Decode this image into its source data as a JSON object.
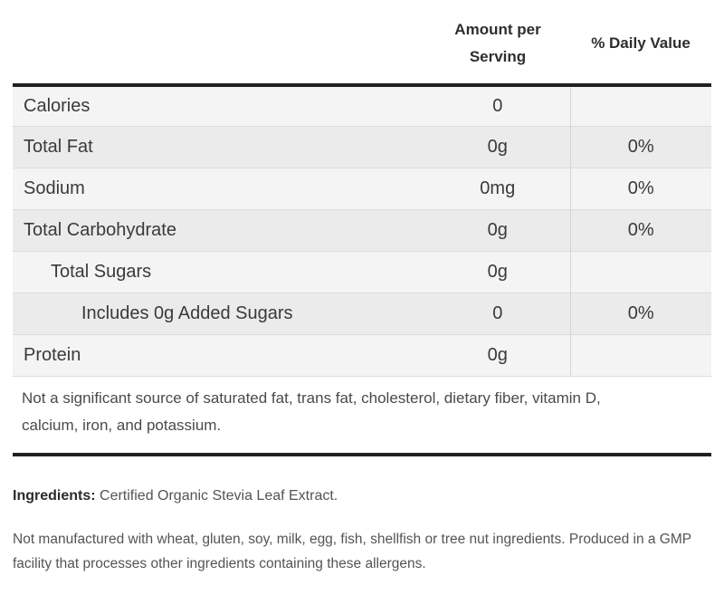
{
  "colors": {
    "rule_dark": "#212121",
    "stripe_light": "#f4f4f4",
    "stripe_dark": "#ebebeb",
    "row_separator": "#dcdcdc",
    "column_divider": "#d4d4d4",
    "label_text": "#3a3a3a",
    "note_text": "#545454"
  },
  "table": {
    "header": {
      "amount_col": "Amount per Serving",
      "daily_value_col": "% Daily Value"
    },
    "rows": [
      {
        "label": "Calories",
        "amount": "0",
        "daily_value": "",
        "indent": 0
      },
      {
        "label": "Total Fat",
        "amount": "0g",
        "daily_value": "0%",
        "indent": 0
      },
      {
        "label": "Sodium",
        "amount": "0mg",
        "daily_value": "0%",
        "indent": 0
      },
      {
        "label": "Total Carbohydrate",
        "amount": "0g",
        "daily_value": "0%",
        "indent": 0
      },
      {
        "label": "Total Sugars",
        "amount": "0g",
        "daily_value": "",
        "indent": 1
      },
      {
        "label": "Includes 0g Added Sugars",
        "amount": "0",
        "daily_value": "0%",
        "indent": 2
      },
      {
        "label": "Protein",
        "amount": "0g",
        "daily_value": "",
        "indent": 0
      }
    ],
    "footnote": "Not a significant source of saturated fat, trans fat, cholesterol, dietary fiber, vitamin D, calcium, iron, and potassium."
  },
  "ingredients": {
    "label": "Ingredients:",
    "text": " Certified Organic Stevia Leaf Extract."
  },
  "allergen_note": "Not manufactured with wheat, gluten, soy, milk, egg, fish, shellfish or tree nut ingredients. Produced in a GMP facility that processes other ingredients containing these allergens."
}
